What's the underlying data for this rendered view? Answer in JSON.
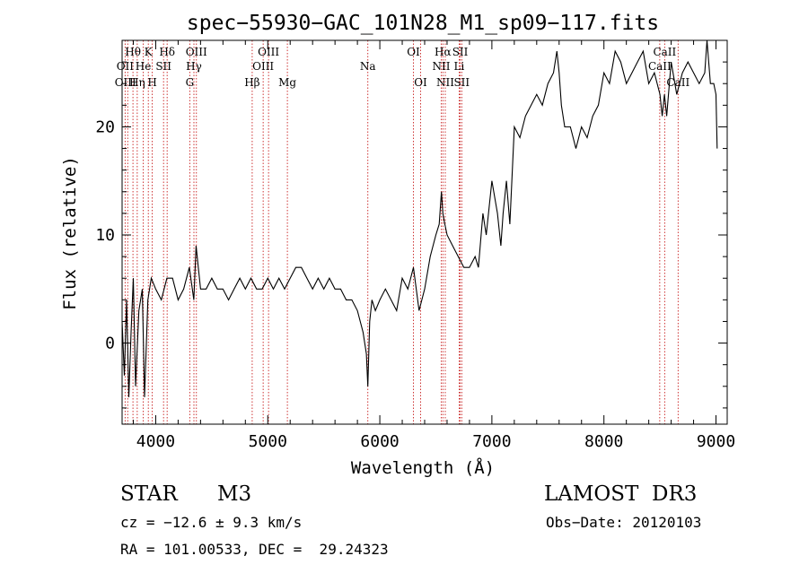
{
  "chart_data": {
    "type": "line",
    "title": "spec−55930−GAC_101N28_M1_sp09−117.fits",
    "xlabel": "Wavelength (Å)",
    "ylabel": "Flux (relative)",
    "xlim": [
      3700,
      9100
    ],
    "ylim": [
      -7.5,
      28
    ],
    "x_ticks": [
      4000,
      5000,
      6000,
      7000,
      8000,
      9000
    ],
    "y_ticks": [
      0,
      10,
      20
    ],
    "grid": false,
    "series": [
      {
        "x": [
          3700,
          3720,
          3740,
          3760,
          3780,
          3800,
          3820,
          3850,
          3880,
          3900,
          3930,
          3960,
          4000,
          4050,
          4100,
          4150,
          4200,
          4250,
          4300,
          4340,
          4360,
          4400,
          4450,
          4500,
          4550,
          4600,
          4650,
          4700,
          4750,
          4800,
          4850,
          4900,
          4950,
          5000,
          5050,
          5100,
          5150,
          5200,
          5250,
          5300,
          5350,
          5400,
          5450,
          5500,
          5550,
          5600,
          5650,
          5700,
          5750,
          5800,
          5850,
          5880,
          5893,
          5910,
          5930,
          5960,
          6000,
          6050,
          6100,
          6150,
          6200,
          6250,
          6300,
          6350,
          6400,
          6450,
          6500,
          6530,
          6550,
          6563,
          6580,
          6600,
          6650,
          6700,
          6750,
          6800,
          6850,
          6880,
          6920,
          6950,
          7000,
          7050,
          7080,
          7100,
          7130,
          7160,
          7200,
          7250,
          7300,
          7350,
          7400,
          7450,
          7500,
          7550,
          7580,
          7600,
          7620,
          7650,
          7700,
          7750,
          7800,
          7850,
          7900,
          7950,
          8000,
          8050,
          8100,
          8150,
          8200,
          8250,
          8300,
          8350,
          8400,
          8450,
          8500,
          8520,
          8540,
          8560,
          8600,
          8650,
          8700,
          8750,
          8800,
          8850,
          8900,
          8920,
          8950,
          8980,
          9000,
          9010
        ],
        "y": [
          2,
          -3,
          4,
          -5,
          1,
          6,
          -4,
          3,
          5,
          -5,
          4,
          6,
          5,
          4,
          6,
          6,
          4,
          5,
          7,
          4,
          9,
          5,
          5,
          6,
          5,
          5,
          4,
          5,
          6,
          5,
          6,
          5,
          5,
          6,
          5,
          6,
          5,
          6,
          7,
          7,
          6,
          5,
          6,
          5,
          6,
          5,
          5,
          4,
          4,
          3,
          1,
          -1,
          -4,
          2,
          4,
          3,
          4,
          5,
          4,
          3,
          6,
          5,
          7,
          3,
          5,
          8,
          10,
          11,
          14,
          12,
          11,
          10,
          9,
          8,
          7,
          7,
          8,
          7,
          12,
          10,
          15,
          12,
          9,
          12,
          15,
          11,
          20,
          19,
          21,
          22,
          23,
          22,
          24,
          25,
          27,
          25,
          22,
          20,
          20,
          18,
          20,
          19,
          21,
          22,
          25,
          24,
          27,
          26,
          24,
          25,
          26,
          27,
          24,
          25,
          23,
          21,
          23,
          21,
          26,
          23,
          25,
          26,
          25,
          24,
          25,
          28,
          24,
          24,
          23,
          18
        ]
      }
    ],
    "line_labels": [
      {
        "label": "Hθ",
        "x": 3797,
        "row": 0
      },
      {
        "label": "OII",
        "x": 3727,
        "row": 1
      },
      {
        "label": "OIII",
        "x": 3730,
        "row": 2
      },
      {
        "label": "Hη",
        "x": 3835,
        "row": 2
      },
      {
        "label": "He",
        "x": 3889,
        "row": 1
      },
      {
        "label": "K",
        "x": 3934,
        "row": 0
      },
      {
        "label": "H",
        "x": 3969,
        "row": 2
      },
      {
        "label": "SII",
        "x": 4070,
        "row": 1
      },
      {
        "label": "Hδ",
        "x": 4102,
        "row": 0
      },
      {
        "label": "OIII",
        "x": 4363,
        "row": 0
      },
      {
        "label": "Hγ",
        "x": 4341,
        "row": 1
      },
      {
        "label": "G",
        "x": 4304,
        "row": 2
      },
      {
        "label": "Hβ",
        "x": 4861,
        "row": 2
      },
      {
        "label": "OIII",
        "x": 5007,
        "row": 0
      },
      {
        "label": "OIII",
        "x": 4959,
        "row": 1
      },
      {
        "label": "Mg",
        "x": 5175,
        "row": 2
      },
      {
        "label": "Na",
        "x": 5893,
        "row": 1
      },
      {
        "label": "OI",
        "x": 6300,
        "row": 0
      },
      {
        "label": "OI",
        "x": 6364,
        "row": 2
      },
      {
        "label": "Hα",
        "x": 6563,
        "row": 0
      },
      {
        "label": "NII",
        "x": 6548,
        "row": 1
      },
      {
        "label": "NII",
        "x": 6584,
        "row": 2
      },
      {
        "label": "SII",
        "x": 6717,
        "row": 0
      },
      {
        "label": "Li",
        "x": 6708,
        "row": 1
      },
      {
        "label": "SII",
        "x": 6731,
        "row": 2
      },
      {
        "label": "CaII",
        "x": 8542,
        "row": 0
      },
      {
        "label": "CaII",
        "x": 8498,
        "row": 1
      },
      {
        "label": "CaII",
        "x": 8662,
        "row": 2
      }
    ],
    "line_marker_wavelengths": [
      3727,
      3750,
      3797,
      3835,
      3889,
      3934,
      3969,
      4070,
      4102,
      4304,
      4341,
      4363,
      4861,
      4959,
      5007,
      5175,
      5893,
      6300,
      6364,
      6548,
      6563,
      6584,
      6708,
      6717,
      6731,
      8498,
      8542,
      8662
    ],
    "marker_color": "#c81e1e",
    "line_color": "#000000"
  },
  "info": {
    "class": "STAR",
    "subclass": "M3",
    "survey": "LAMOST  DR3",
    "cz": "cz = −12.6 ± 9.3 km/s",
    "obs_date": "Obs−Date: 20120103",
    "coords": "RA = 101.00533, DEC =  29.24323"
  }
}
